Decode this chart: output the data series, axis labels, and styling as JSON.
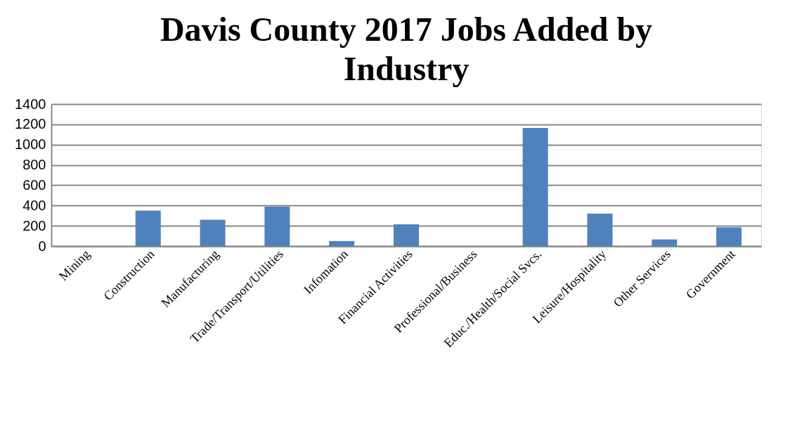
{
  "chart_data": {
    "type": "bar",
    "title": "Davis County 2017 Jobs Added by Industry",
    "categories": [
      "Mining",
      "Construction",
      "Manufacturing",
      "Trade/Transport/Utilities",
      "Infomation",
      "Financial Activities",
      "Professional/Business",
      "Educ./Health/Social Svcs.",
      "Leisure/Hospitality",
      "Other Services",
      "Government"
    ],
    "values": [
      null,
      350,
      260,
      390,
      50,
      215,
      null,
      1165,
      320,
      65,
      185
    ],
    "color": "#4f81bd",
    "ylim": [
      0,
      1400
    ],
    "yticks": [
      0,
      200,
      400,
      600,
      800,
      1000,
      1200,
      1400
    ],
    "grid": "y"
  }
}
